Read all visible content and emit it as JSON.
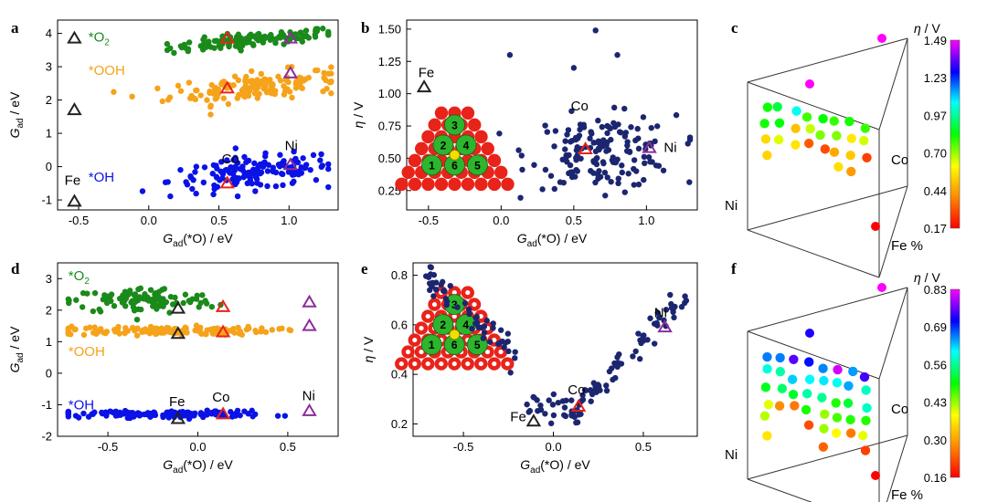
{
  "figure": {
    "panels": [
      "a",
      "b",
      "c",
      "d",
      "e",
      "f"
    ]
  },
  "colors": {
    "o2": "#1a8a1a",
    "ooh": "#f5a31a",
    "oh": "#0a12e6",
    "eta": "#1c2670",
    "fe_marker": "#222222",
    "co_marker": "#e8231a",
    "ni_marker": "#8b2e9a",
    "inset_green": "#2db52d",
    "inset_red": "#e8231a",
    "inset_yellow": "#f0e000"
  },
  "chart_data": [
    {
      "panel": "a",
      "type": "scatter",
      "xlabel": "Gad(*O) / eV",
      "ylabel": "Gad / eV",
      "xlim": [
        -0.65,
        1.35
      ],
      "ylim": [
        -1.3,
        4.4
      ],
      "xticks": [
        "-0.5",
        "0.0",
        "0.5",
        "1.0"
      ],
      "xtick_values": [
        -0.5,
        0.0,
        0.5,
        1.0
      ],
      "yticks": [
        "4",
        "3",
        "2",
        "1",
        "0",
        "-1"
      ],
      "ytick_values": [
        4,
        3,
        2,
        1,
        0,
        -1
      ],
      "series": [
        {
          "name": "*O2",
          "color": "o2",
          "center": [
            0.75,
            3.8
          ],
          "spread": [
            0.3,
            0.15
          ],
          "count": 120,
          "xrange": [
            -0.2,
            1.28
          ]
        },
        {
          "name": "*OOH",
          "color": "ooh",
          "center": [
            0.75,
            2.4
          ],
          "spread": [
            0.3,
            0.3
          ],
          "count": 150,
          "xrange": [
            -0.25,
            1.3
          ]
        },
        {
          "name": "*OH",
          "color": "oh",
          "center": [
            0.75,
            -0.2
          ],
          "spread": [
            0.3,
            0.35
          ],
          "count": 150,
          "xrange": [
            -0.25,
            1.28
          ]
        }
      ],
      "markers": [
        {
          "label": "Fe",
          "color": "fe_marker",
          "points": [
            [
              -0.53,
              3.85
            ],
            [
              -0.53,
              1.7
            ],
            [
              -0.53,
              -1.05
            ]
          ]
        },
        {
          "label": "Co",
          "color": "co_marker",
          "points": [
            [
              0.56,
              3.85
            ],
            [
              0.56,
              2.35
            ],
            [
              0.56,
              -0.5
            ]
          ]
        },
        {
          "label": "Ni",
          "color": "ni_marker",
          "points": [
            [
              1.01,
              3.85
            ],
            [
              1.01,
              2.8
            ],
            [
              1.01,
              0.05
            ]
          ]
        }
      ],
      "annotations": [
        "*O2",
        "*OOH",
        "*OH",
        "Fe",
        "Co",
        "Ni"
      ]
    },
    {
      "panel": "b",
      "type": "scatter",
      "xlabel": "Gad(*O) / eV",
      "ylabel": "η / V",
      "xlim": [
        -0.65,
        1.35
      ],
      "ylim": [
        0.1,
        1.57
      ],
      "xticks": [
        "-0.5",
        "0.0",
        "0.5",
        "1.0"
      ],
      "xtick_values": [
        -0.5,
        0.0,
        0.5,
        1.0
      ],
      "yticks": [
        "1.50",
        "1.25",
        "1.00",
        "0.75",
        "0.50",
        "0.25"
      ],
      "ytick_values": [
        1.5,
        1.25,
        1.0,
        0.75,
        0.5,
        0.25
      ],
      "series": [
        {
          "name": "η",
          "color": "eta",
          "center": [
            0.7,
            0.55
          ],
          "spread": [
            0.25,
            0.2
          ],
          "count": 160,
          "xrange": [
            -0.25,
            1.3
          ]
        }
      ],
      "outliers": [
        [
          0.06,
          1.3
        ],
        [
          0.65,
          1.49
        ],
        [
          0.5,
          1.2
        ],
        [
          0.8,
          1.3
        ]
      ],
      "markers": [
        {
          "label": "Fe",
          "color": "fe_marker",
          "points": [
            [
              -0.53,
              1.05
            ]
          ]
        },
        {
          "label": "Co",
          "color": "co_marker",
          "points": [
            [
              0.58,
              0.57
            ]
          ]
        },
        {
          "label": "Ni",
          "color": "ni_marker",
          "points": [
            [
              1.02,
              0.58
            ]
          ]
        }
      ],
      "inset_numbers": [
        "1",
        "2",
        "3",
        "4",
        "5",
        "6"
      ],
      "annotations": [
        "Fe",
        "Co",
        "Ni"
      ]
    },
    {
      "panel": "c",
      "type": "scatter3d",
      "axis_labels": [
        "Ni",
        "Co",
        "Fe%"
      ],
      "colorbar": {
        "title": "η / V",
        "ticks": [
          "1.49",
          "1.23",
          "0.97",
          "0.70",
          "0.44",
          "0.17"
        ],
        "range": [
          0.17,
          1.49
        ]
      }
    },
    {
      "panel": "d",
      "type": "scatter",
      "xlabel": "Gad(*O) / eV",
      "ylabel": "Gad / eV",
      "xlim": [
        -0.78,
        0.78
      ],
      "ylim": [
        -2.0,
        3.5
      ],
      "xticks": [
        "-0.5",
        "0.0",
        "0.5"
      ],
      "xtick_values": [
        -0.5,
        0.0,
        0.5
      ],
      "yticks": [
        "3",
        "2",
        "1",
        "0",
        "-1",
        "-2"
      ],
      "ytick_values": [
        3,
        2,
        1,
        0,
        -1,
        -2
      ],
      "series": [
        {
          "name": "*O2",
          "color": "o2",
          "center": [
            -0.3,
            2.3
          ],
          "spread": [
            0.2,
            0.3
          ],
          "count": 110,
          "xrange": [
            -0.72,
            0.75
          ]
        },
        {
          "name": "*OOH",
          "color": "ooh",
          "center": [
            -0.2,
            1.35
          ],
          "spread": [
            0.3,
            0.1
          ],
          "count": 140,
          "xrange": [
            -0.72,
            0.75
          ]
        },
        {
          "name": "*OH",
          "color": "oh",
          "center": [
            -0.2,
            -1.3
          ],
          "spread": [
            0.3,
            0.08
          ],
          "count": 140,
          "xrange": [
            -0.72,
            0.75
          ]
        }
      ],
      "markers": [
        {
          "label": "Fe",
          "color": "fe_marker",
          "points": [
            [
              -0.11,
              2.05
            ],
            [
              -0.11,
              1.25
            ],
            [
              -0.11,
              -1.45
            ]
          ]
        },
        {
          "label": "Co",
          "color": "co_marker",
          "points": [
            [
              0.14,
              2.1
            ],
            [
              0.14,
              1.3
            ],
            [
              0.14,
              -1.3
            ]
          ]
        },
        {
          "label": "Ni",
          "color": "ni_marker",
          "points": [
            [
              0.62,
              2.25
            ],
            [
              0.62,
              1.5
            ],
            [
              0.62,
              -1.2
            ]
          ]
        }
      ],
      "annotations": [
        "*O2",
        "*OOH",
        "*OH",
        "Fe",
        "Co",
        "Ni"
      ]
    },
    {
      "panel": "e",
      "type": "scatter",
      "xlabel": "Gad(*O) / eV",
      "ylabel": "η / V",
      "xlim": [
        -0.78,
        0.8
      ],
      "ylim": [
        0.15,
        0.85
      ],
      "xticks": [
        "-0.5",
        "0.0",
        "0.5"
      ],
      "xtick_values": [
        -0.5,
        0.0,
        0.5
      ],
      "yticks": [
        "0.8",
        "0.6",
        "0.4",
        "0.2"
      ],
      "ytick_values": [
        0.8,
        0.6,
        0.4,
        0.2
      ],
      "series": [
        {
          "name": "η",
          "color": "eta",
          "shape": "v-curve",
          "count": 150,
          "xrange": [
            -0.72,
            0.75
          ]
        }
      ],
      "markers": [
        {
          "label": "Fe",
          "color": "fe_marker",
          "points": [
            [
              -0.11,
              0.21
            ]
          ]
        },
        {
          "label": "Co",
          "color": "co_marker",
          "points": [
            [
              0.14,
              0.27
            ]
          ]
        },
        {
          "label": "Ni",
          "color": "ni_marker",
          "points": [
            [
              0.62,
              0.59
            ]
          ]
        }
      ],
      "inset_numbers": [
        "1",
        "2",
        "3",
        "4",
        "5",
        "6"
      ],
      "annotations": [
        "Fe",
        "Co",
        "Ni"
      ]
    },
    {
      "panel": "f",
      "type": "scatter3d",
      "axis_labels": [
        "Ni",
        "Co",
        "Fe%"
      ],
      "colorbar": {
        "title": "η / V",
        "ticks": [
          "0.83",
          "0.69",
          "0.56",
          "0.43",
          "0.30",
          "0.16"
        ],
        "range": [
          0.16,
          0.83
        ]
      }
    }
  ]
}
